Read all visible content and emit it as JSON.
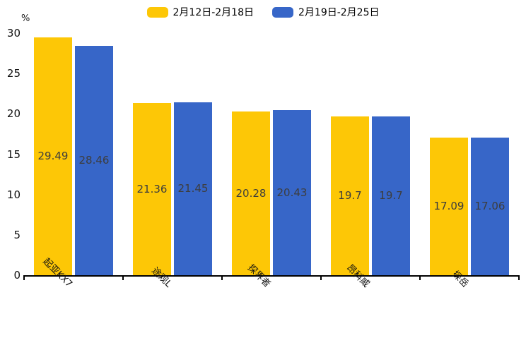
{
  "chart_data": {
    "type": "bar",
    "unit": "%",
    "categories": [
      "起亚KX7",
      "途观L",
      "探界者",
      "昂科威",
      "探岳"
    ],
    "series": [
      {
        "name": "2月12日-2月18日",
        "color": "#FDC706",
        "values": [
          29.49,
          21.36,
          20.28,
          19.7,
          17.09
        ]
      },
      {
        "name": "2月19日-2月25日",
        "color": "#3766C8",
        "values": [
          28.46,
          21.45,
          20.43,
          19.7,
          17.06
        ]
      }
    ],
    "ylim": [
      0,
      30
    ],
    "y_ticks": [
      0,
      5,
      10,
      15,
      20,
      25,
      30
    ],
    "grid": false,
    "legend_position": "top",
    "value_label_color": "#3d3d3d",
    "axis_color": "#000000",
    "background_color": "#ffffff"
  }
}
